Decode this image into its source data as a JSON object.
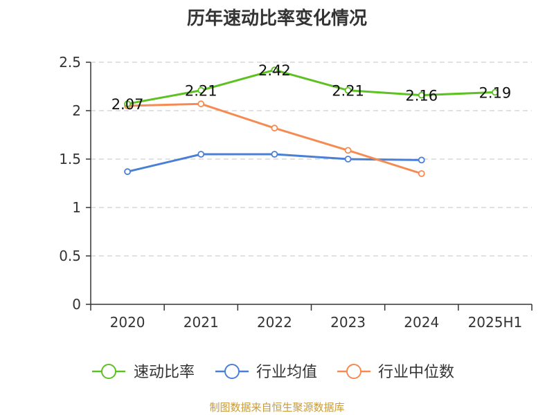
{
  "chart_data": {
    "type": "line",
    "title": "历年速动比率变化情况",
    "xlabel": "",
    "ylabel": "",
    "categories": [
      "2020",
      "2021",
      "2022",
      "2023",
      "2024",
      "2025H1"
    ],
    "ylim": [
      0,
      2.5
    ],
    "yticks": [
      "0",
      "0.5",
      "1",
      "1.5",
      "2",
      "2.5"
    ],
    "grid": true,
    "legend_position": "bottom",
    "series": [
      {
        "name": "速动比率",
        "color": "#5cc121",
        "values": [
          2.07,
          2.21,
          2.42,
          2.21,
          2.16,
          2.19
        ],
        "labels": [
          "2.07",
          "2.21",
          "2.42",
          "2.21",
          "2.16",
          "2.19"
        ]
      },
      {
        "name": "行业均值",
        "color": "#4a7fd6",
        "values": [
          1.37,
          1.55,
          1.55,
          1.5,
          1.49,
          null
        ]
      },
      {
        "name": "行业中位数",
        "color": "#f58b52",
        "values": [
          2.05,
          2.07,
          1.82,
          1.59,
          1.35,
          null
        ]
      }
    ]
  },
  "source_note": "制图数据来自恒生聚源数据库"
}
